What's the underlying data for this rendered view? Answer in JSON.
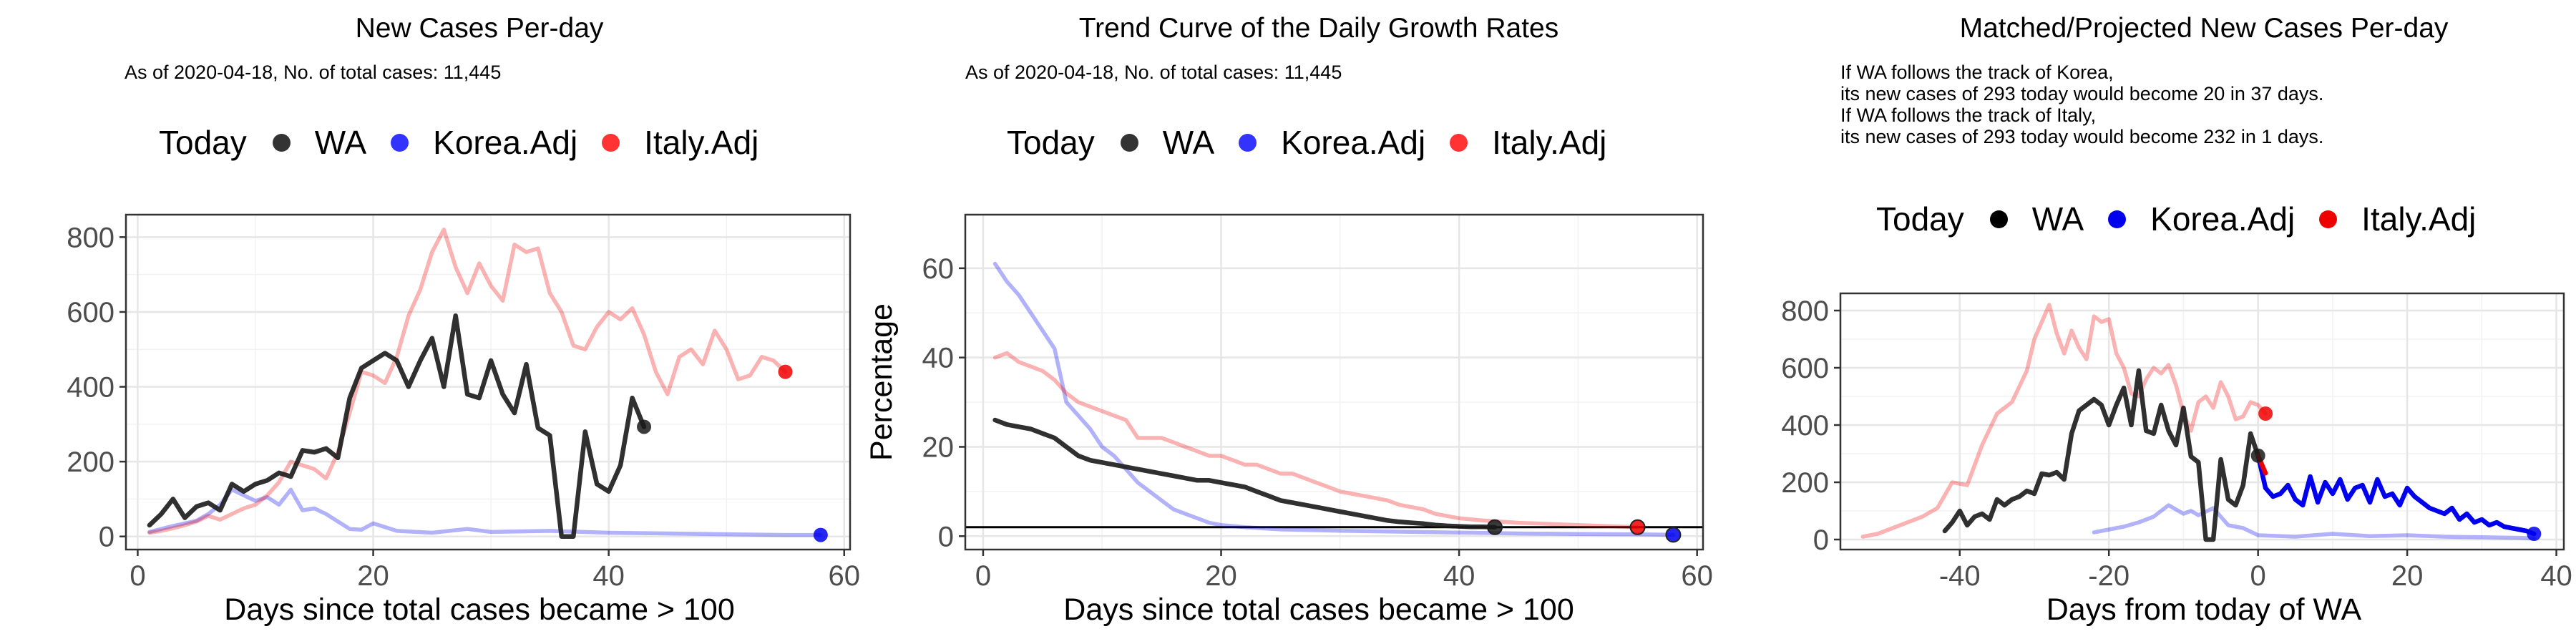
{
  "panels": [
    {
      "title": "New Cases Per-day",
      "subtitle": [
        "As of 2020-04-18, No. of total cases: 11,445"
      ],
      "legend": {
        "title": "Today",
        "items": [
          "WA",
          "Korea.Adj",
          "Italy.Adj"
        ]
      }
    },
    {
      "title": "Trend Curve of the Daily Growth Rates",
      "subtitle": [
        "As of 2020-04-18, No. of total cases: 11,445"
      ],
      "legend": {
        "title": "Today",
        "items": [
          "WA",
          "Korea.Adj",
          "Italy.Adj"
        ]
      }
    },
    {
      "title": "Matched/Projected New Cases Per-day",
      "subtitle": [
        "If WA follows the track of Korea,",
        "its new cases of 293 today would become 20 in 37 days.",
        "If WA follows the track of Italy,",
        "its new cases of 293 today would become 232 in 1 days."
      ],
      "legend": {
        "title": "Today",
        "items": [
          "WA",
          "Korea.Adj",
          "Italy.Adj"
        ]
      }
    }
  ],
  "colors": {
    "wa": "#1a1a1a",
    "korea": "#0000ee",
    "italy": "#ee0000",
    "grid": "#e6e6e6",
    "panel_border": "#333333"
  },
  "chart_data": [
    {
      "type": "line",
      "title": "New Cases Per-day",
      "xlabel": "Days since total cases became > 100",
      "ylabel": "",
      "xlim": [
        -1,
        60.5
      ],
      "ylim": [
        -35,
        860
      ],
      "xticks": [
        0,
        20,
        40,
        60
      ],
      "yticks": [
        0,
        200,
        400,
        600,
        800
      ],
      "grid": true,
      "legend_position": "top",
      "series": [
        {
          "name": "Korea.Adj",
          "color": "#0000ee",
          "opacity": 0.3,
          "x": [
            1,
            2,
            3,
            4,
            5,
            6,
            7,
            8,
            9,
            10,
            11,
            12,
            13,
            14,
            15,
            16,
            17,
            18,
            19,
            20,
            22,
            25,
            28,
            30,
            35,
            40,
            45,
            50,
            55,
            58
          ],
          "y": [
            12,
            20,
            28,
            35,
            42,
            60,
            85,
            125,
            110,
            95,
            105,
            85,
            125,
            70,
            75,
            60,
            40,
            20,
            18,
            35,
            15,
            10,
            20,
            12,
            15,
            10,
            8,
            6,
            4,
            4
          ]
        },
        {
          "name": "Italy.Adj",
          "color": "#ee0000",
          "opacity": 0.3,
          "x": [
            1,
            2,
            3,
            4,
            5,
            6,
            7,
            8,
            9,
            10,
            11,
            12,
            13,
            14,
            15,
            16,
            17,
            18,
            19,
            20,
            21,
            22,
            23,
            24,
            25,
            26,
            27,
            28,
            29,
            30,
            31,
            32,
            33,
            34,
            35,
            36,
            37,
            38,
            39,
            40,
            41,
            42,
            43,
            44,
            45,
            46,
            47,
            48,
            49,
            50,
            51,
            52,
            53,
            54,
            55
          ],
          "y": [
            10,
            15,
            22,
            30,
            40,
            55,
            45,
            60,
            75,
            85,
            110,
            145,
            200,
            190,
            180,
            155,
            225,
            330,
            440,
            430,
            410,
            480,
            590,
            660,
            760,
            820,
            720,
            650,
            730,
            670,
            630,
            780,
            760,
            770,
            650,
            600,
            510,
            500,
            560,
            600,
            580,
            610,
            540,
            440,
            380,
            480,
            500,
            460,
            550,
            500,
            420,
            430,
            480,
            470,
            440
          ]
        },
        {
          "name": "WA",
          "color": "#1a1a1a",
          "opacity": 0.9,
          "x": [
            1,
            2,
            3,
            4,
            5,
            6,
            7,
            8,
            9,
            10,
            11,
            12,
            13,
            14,
            15,
            16,
            17,
            18,
            19,
            20,
            21,
            22,
            23,
            24,
            25,
            26,
            27,
            28,
            29,
            30,
            31,
            32,
            33,
            34,
            35,
            36,
            37,
            38,
            39,
            40,
            41,
            42,
            43
          ],
          "y": [
            30,
            60,
            100,
            50,
            80,
            90,
            70,
            140,
            120,
            140,
            150,
            170,
            160,
            230,
            225,
            235,
            210,
            370,
            450,
            470,
            490,
            470,
            400,
            470,
            530,
            400,
            590,
            380,
            370,
            470,
            380,
            330,
            460,
            290,
            270,
            0,
            0,
            280,
            140,
            120,
            190,
            370,
            293
          ]
        }
      ],
      "today_points": [
        {
          "name": "WA",
          "x": 43,
          "y": 293
        },
        {
          "name": "Korea.Adj",
          "x": 58,
          "y": 4
        },
        {
          "name": "Italy.Adj",
          "x": 55,
          "y": 440
        }
      ]
    },
    {
      "type": "line",
      "title": "Trend Curve of the Daily Growth Rates",
      "xlabel": "Days since total cases became > 100",
      "ylabel": "Percentage",
      "xlim": [
        -1.5,
        60.5
      ],
      "ylim": [
        -3,
        72
      ],
      "xticks": [
        0,
        20,
        40,
        60
      ],
      "yticks": [
        0,
        20,
        40,
        60
      ],
      "hline": 2,
      "grid": true,
      "legend_position": "top",
      "series": [
        {
          "name": "Korea.Adj",
          "color": "#0000ee",
          "opacity": 0.3,
          "x": [
            1,
            2,
            3,
            4,
            5,
            6,
            7,
            8,
            9,
            10,
            11,
            12,
            13,
            14,
            15,
            16,
            17,
            18,
            19,
            20,
            22,
            25,
            30,
            35,
            40,
            45,
            50,
            55,
            58
          ],
          "y": [
            61,
            57,
            54,
            50,
            46,
            42,
            30,
            27,
            24,
            20,
            18,
            15,
            12,
            10,
            8,
            6,
            5,
            4,
            3,
            2.5,
            2,
            1.5,
            1.2,
            1,
            0.8,
            0.6,
            0.5,
            0.4,
            0.3
          ]
        },
        {
          "name": "Italy.Adj",
          "color": "#ee0000",
          "opacity": 0.3,
          "x": [
            1,
            2,
            3,
            4,
            5,
            6,
            7,
            8,
            9,
            10,
            11,
            12,
            13,
            14,
            15,
            16,
            17,
            18,
            19,
            20,
            21,
            22,
            23,
            24,
            25,
            26,
            27,
            28,
            29,
            30,
            31,
            32,
            33,
            34,
            35,
            36,
            37,
            38,
            39,
            40,
            42,
            45,
            50,
            55
          ],
          "y": [
            40,
            41,
            39,
            38,
            37,
            35,
            32,
            30,
            29,
            28,
            27,
            26,
            22,
            22,
            22,
            21,
            20,
            19,
            18,
            18,
            17,
            16,
            16,
            15,
            14,
            14,
            13,
            12,
            11,
            10,
            9.5,
            9,
            8.5,
            8,
            7,
            6.5,
            6,
            5,
            4.5,
            4,
            3.5,
            3,
            2.5,
            2
          ]
        },
        {
          "name": "WA",
          "color": "#1a1a1a",
          "opacity": 0.9,
          "x": [
            1,
            2,
            3,
            4,
            5,
            6,
            7,
            8,
            9,
            10,
            11,
            12,
            13,
            14,
            15,
            16,
            17,
            18,
            19,
            20,
            21,
            22,
            23,
            24,
            25,
            26,
            27,
            28,
            29,
            30,
            31,
            32,
            33,
            34,
            35,
            36,
            37,
            38,
            39,
            40,
            41,
            42,
            43
          ],
          "y": [
            26,
            25,
            24.5,
            24,
            23,
            22,
            20,
            18,
            17,
            16.5,
            16,
            15.5,
            15,
            14.5,
            14,
            13.5,
            13,
            12.5,
            12.5,
            12,
            11.5,
            11,
            10,
            9,
            8,
            7.5,
            7,
            6.5,
            6,
            5.5,
            5,
            4.5,
            4,
            3.5,
            3.2,
            3,
            2.8,
            2.5,
            2.3,
            2.2,
            2.1,
            2.1,
            2
          ]
        }
      ],
      "today_points": [
        {
          "name": "WA",
          "x": 43,
          "y": 2
        },
        {
          "name": "Korea.Adj",
          "x": 58,
          "y": 0.3
        },
        {
          "name": "Italy.Adj",
          "x": 55,
          "y": 2
        }
      ]
    },
    {
      "type": "line",
      "title": "Matched/Projected New Cases Per-day",
      "xlabel": "Days from today of WA",
      "ylabel": "",
      "xlim": [
        -56,
        41
      ],
      "ylim": [
        -35,
        860
      ],
      "xticks": [
        -40,
        -20,
        0,
        20,
        40
      ],
      "yticks": [
        0,
        200,
        400,
        600,
        800
      ],
      "grid": true,
      "legend_position": "top",
      "series": [
        {
          "name": "Korea.Adj",
          "color": "#0000ee",
          "opacity": 0.3,
          "x": [
            -22,
            -20,
            -18,
            -16,
            -14,
            -12,
            -11,
            -10,
            -9,
            -8,
            -6,
            -4,
            -2,
            0,
            5,
            10,
            15,
            20,
            25,
            30,
            35,
            37
          ],
          "y": [
            25,
            35,
            45,
            60,
            80,
            120,
            105,
            90,
            100,
            85,
            110,
            50,
            40,
            15,
            10,
            20,
            12,
            15,
            10,
            8,
            6,
            4
          ]
        },
        {
          "name": "Italy.Adj",
          "color": "#ee0000",
          "opacity": 0.3,
          "x": [
            -53,
            -51,
            -49,
            -47,
            -45,
            -43,
            -41,
            -39,
            -37,
            -35,
            -33,
            -31,
            -30,
            -29,
            -28,
            -27,
            -26,
            -25,
            -24,
            -23,
            -22,
            -21,
            -20,
            -19,
            -18,
            -17,
            -16,
            -15,
            -14,
            -13,
            -12,
            -11,
            -10,
            -9,
            -8,
            -7,
            -6,
            -5,
            -4,
            -3,
            -2,
            -1,
            0,
            1
          ],
          "y": [
            10,
            20,
            40,
            60,
            80,
            110,
            200,
            190,
            330,
            440,
            480,
            590,
            700,
            760,
            820,
            720,
            650,
            730,
            670,
            630,
            780,
            760,
            770,
            650,
            600,
            510,
            500,
            560,
            600,
            580,
            610,
            540,
            440,
            380,
            480,
            500,
            460,
            550,
            500,
            420,
            430,
            480,
            470,
            440
          ]
        },
        {
          "name": "WA",
          "color": "#1a1a1a",
          "opacity": 0.9,
          "x": [
            -42,
            -41,
            -40,
            -39,
            -38,
            -37,
            -36,
            -35,
            -34,
            -33,
            -32,
            -31,
            -30,
            -29,
            -28,
            -27,
            -26,
            -25,
            -24,
            -23,
            -22,
            -21,
            -20,
            -19,
            -18,
            -17,
            -16,
            -15,
            -14,
            -13,
            -12,
            -11,
            -10,
            -9,
            -8,
            -7,
            -6,
            -5,
            -4,
            -3,
            -2,
            -1,
            0
          ],
          "y": [
            30,
            60,
            100,
            50,
            80,
            90,
            70,
            140,
            120,
            140,
            150,
            170,
            160,
            230,
            225,
            235,
            210,
            370,
            450,
            470,
            490,
            470,
            400,
            470,
            530,
            400,
            590,
            380,
            370,
            470,
            380,
            330,
            460,
            290,
            270,
            0,
            0,
            280,
            140,
            120,
            190,
            370,
            293
          ]
        },
        {
          "name": "Korea.Adj projected",
          "color": "#0000ee",
          "opacity": 1,
          "x": [
            0,
            1,
            2,
            3,
            4,
            5,
            6,
            7,
            8,
            9,
            10,
            11,
            12,
            13,
            14,
            15,
            16,
            17,
            18,
            19,
            20,
            21,
            22,
            23,
            24,
            25,
            26,
            27,
            28,
            29,
            30,
            31,
            32,
            33,
            34,
            35,
            36,
            37
          ],
          "y": [
            293,
            180,
            150,
            160,
            190,
            140,
            120,
            220,
            130,
            200,
            160,
            210,
            140,
            180,
            190,
            130,
            210,
            150,
            160,
            120,
            180,
            150,
            130,
            110,
            100,
            90,
            110,
            70,
            90,
            60,
            70,
            50,
            60,
            45,
            40,
            35,
            30,
            20
          ]
        },
        {
          "name": "Italy.Adj projected",
          "color": "#ee0000",
          "opacity": 1,
          "x": [
            0,
            1
          ],
          "y": [
            293,
            232
          ]
        }
      ],
      "today_points": [
        {
          "name": "WA",
          "x": 0,
          "y": 293
        },
        {
          "name": "Korea.Adj",
          "x": 37,
          "y": 20
        },
        {
          "name": "Italy.Adj",
          "x": 1,
          "y": 440
        }
      ]
    }
  ]
}
